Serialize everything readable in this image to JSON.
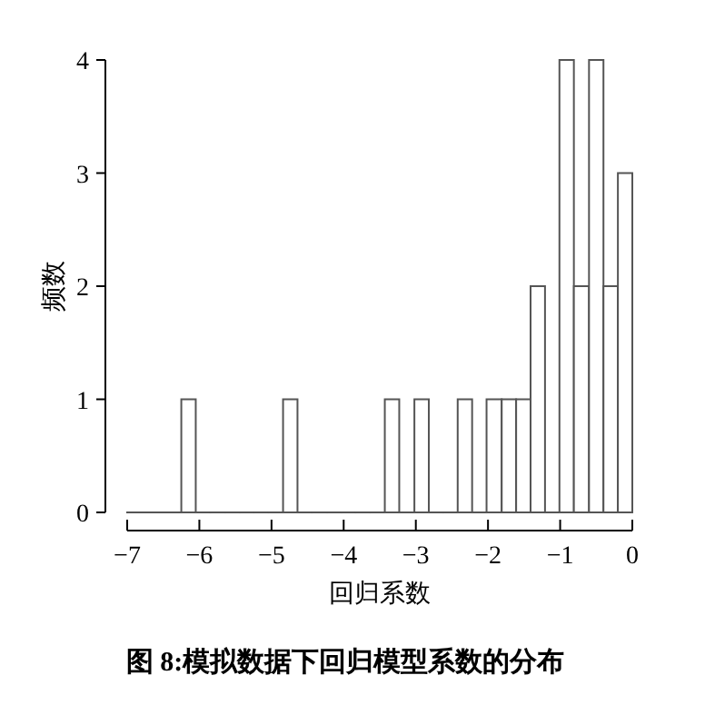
{
  "chart_data": {
    "type": "histogram",
    "xlabel": "回归系数",
    "ylabel": "频数",
    "annotations": [
      "图 8:模拟数据下回归模型系数的分布"
    ],
    "bins": [
      -7,
      -6.25,
      -6.05,
      -5.85,
      -5.65,
      -5.44,
      -5.24,
      -5.04,
      -4.84,
      -4.64,
      -4.44,
      -4.23,
      -4.03,
      -3.83,
      -3.63,
      -3.43,
      -3.23,
      -3.02,
      -2.82,
      -2.62,
      -2.42,
      -2.22,
      -2.02,
      -1.81,
      -1.61,
      -1.41,
      -1.21,
      -1.01,
      -0.81,
      -0.6,
      -0.4,
      -0.2,
      0
    ],
    "values": [
      0,
      1,
      0,
      0,
      0,
      0,
      0,
      0,
      1,
      0,
      0,
      0,
      0,
      0,
      0,
      1,
      0,
      1,
      0,
      0,
      1,
      0,
      1,
      1,
      1,
      2,
      0,
      4,
      2,
      4,
      2,
      3
    ],
    "color": "#ffffff",
    "xlim": [
      -7,
      0
    ],
    "xticks": [
      {
        "value": -7,
        "label": "−7"
      },
      {
        "value": -6,
        "label": "−6"
      },
      {
        "value": -5,
        "label": "−5"
      },
      {
        "value": -4,
        "label": "−4"
      },
      {
        "value": -3,
        "label": "−3"
      },
      {
        "value": -2,
        "label": "−2"
      },
      {
        "value": -1,
        "label": "−1"
      },
      0
    ],
    "ylim": [
      0,
      4
    ],
    "yticks": [
      0,
      1,
      2,
      3,
      4
    ],
    "grid": false
  }
}
